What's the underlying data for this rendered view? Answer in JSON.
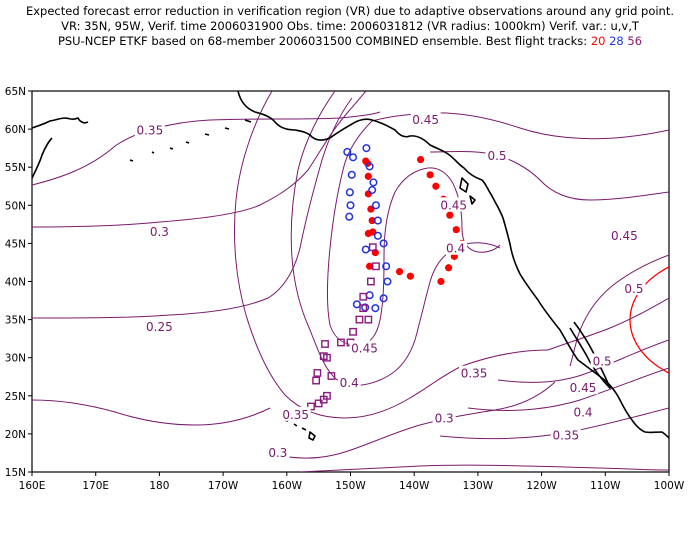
{
  "title": {
    "line1": "Expected forecast error reduction in verification region (VR) due to adaptive observations around any grid point.",
    "line2": "VR: 35N, 95W, Verif. time 2006031900   Obs. time: 2006031812 (VR radius: 1000km)    Verif. var.: u,v,T",
    "line3_prefix": "PSU-NCEP ETKF based on 68-member 2006031500 COMBINED ensemble.  Best flight tracks:",
    "track_red": "20",
    "track_blue": "28",
    "track_purple": "56"
  },
  "colors": {
    "contour": "#7a1a6e",
    "coast": "#000000",
    "track_red": "#ff0000",
    "track_blue": "#2233dd",
    "track_purple": "#8a1a7e",
    "verification_circle": "#ff0000"
  },
  "axes": {
    "x_ticks": [
      "160E",
      "170E",
      "180",
      "170W",
      "160W",
      "150W",
      "140W",
      "130W",
      "120W",
      "110W",
      "100W"
    ],
    "y_ticks": [
      "15N",
      "20N",
      "25N",
      "30N",
      "35N",
      "40N",
      "45N",
      "50N",
      "55N",
      "60N",
      "65N"
    ],
    "lon_range_east_deg": [
      160,
      260
    ],
    "lat_range": [
      15,
      65
    ]
  },
  "contour_labels": [
    {
      "text": "0.35",
      "lon": 178.5,
      "lat": 59.8
    },
    {
      "text": "0.3",
      "lon": 180.0,
      "lat": 46.5
    },
    {
      "text": "0.25",
      "lon": 180.0,
      "lat": 34.0
    },
    {
      "text": "0.45",
      "lon": 221.8,
      "lat": 61.2
    },
    {
      "text": "0.5",
      "lon": 233.0,
      "lat": 56.5
    },
    {
      "text": "0.45",
      "lon": 226.2,
      "lat": 50.0
    },
    {
      "text": "0.4",
      "lon": 226.5,
      "lat": 44.3
    },
    {
      "text": "0.45",
      "lon": 253.0,
      "lat": 46.0
    },
    {
      "text": "0.5",
      "lon": 254.5,
      "lat": 39.0
    },
    {
      "text": "0.45",
      "lon": 212.2,
      "lat": 31.2
    },
    {
      "text": "0.4",
      "lon": 209.8,
      "lat": 26.7
    },
    {
      "text": "0.35",
      "lon": 229.4,
      "lat": 27.9
    },
    {
      "text": "0.35",
      "lon": 201.4,
      "lat": 22.5
    },
    {
      "text": "0.3",
      "lon": 224.7,
      "lat": 22.0
    },
    {
      "text": "0.3",
      "lon": 198.6,
      "lat": 17.5
    },
    {
      "text": "0.5",
      "lon": 249.5,
      "lat": 29.5
    },
    {
      "text": "0.45",
      "lon": 246.5,
      "lat": 26.0
    },
    {
      "text": "0.4",
      "lon": 246.5,
      "lat": 22.8
    },
    {
      "text": "0.35",
      "lon": 243.8,
      "lat": 19.8
    }
  ],
  "tracks": {
    "red": [
      [
        221.0,
        56.0
      ],
      [
        222.5,
        54.0
      ],
      [
        223.4,
        52.5
      ],
      [
        224.6,
        50.8
      ],
      [
        225.6,
        48.7
      ],
      [
        226.6,
        46.8
      ],
      [
        227.5,
        45.0
      ],
      [
        226.3,
        43.3
      ],
      [
        225.4,
        41.8
      ],
      [
        224.2,
        40.0
      ],
      [
        217.7,
        41.3
      ],
      [
        219.4,
        40.7
      ],
      [
        213.5,
        46.5
      ],
      [
        212.8,
        46.3
      ],
      [
        213.9,
        43.8
      ],
      [
        213.0,
        42.0
      ],
      [
        212.4,
        55.8
      ],
      [
        212.7,
        55.5
      ],
      [
        212.8,
        53.8
      ],
      [
        212.8,
        51.5
      ],
      [
        213.2,
        49.5
      ],
      [
        213.4,
        48.0
      ]
    ],
    "blue": [
      [
        209.5,
        57.0
      ],
      [
        210.4,
        56.3
      ],
      [
        212.5,
        57.5
      ],
      [
        213.0,
        55.1
      ],
      [
        213.6,
        53.0
      ],
      [
        210.2,
        54.0
      ],
      [
        209.9,
        51.7
      ],
      [
        210.0,
        50.0
      ],
      [
        213.4,
        52.0
      ],
      [
        214.0,
        50.0
      ],
      [
        209.8,
        48.5
      ],
      [
        214.3,
        48.0
      ],
      [
        214.3,
        46.0
      ],
      [
        212.4,
        44.2
      ],
      [
        215.2,
        45.0
      ],
      [
        215.6,
        42.0
      ],
      [
        215.8,
        40.0
      ],
      [
        215.2,
        37.8
      ],
      [
        213.9,
        36.5
      ],
      [
        211.0,
        37.0
      ],
      [
        212.3,
        36.6
      ],
      [
        213.0,
        38.2
      ]
    ],
    "purple": [
      [
        213.5,
        44.5
      ],
      [
        214.0,
        42.0
      ],
      [
        213.2,
        40.0
      ],
      [
        212.0,
        38.0
      ],
      [
        212.0,
        36.5
      ],
      [
        212.8,
        35.0
      ],
      [
        211.4,
        35.0
      ],
      [
        210.4,
        33.4
      ],
      [
        210.0,
        32.0
      ],
      [
        208.5,
        32.0
      ],
      [
        206.0,
        31.8
      ],
      [
        206.3,
        30.0
      ],
      [
        205.8,
        30.2
      ],
      [
        204.8,
        28.0
      ],
      [
        207.0,
        27.6
      ],
      [
        206.3,
        25.0
      ],
      [
        205.8,
        24.5
      ],
      [
        204.6,
        27.0
      ],
      [
        205.0,
        24.0
      ],
      [
        203.8,
        23.6
      ]
    ]
  },
  "verification_region": {
    "lon": 265.0,
    "lat": 35.0,
    "radius_km": 1000
  }
}
